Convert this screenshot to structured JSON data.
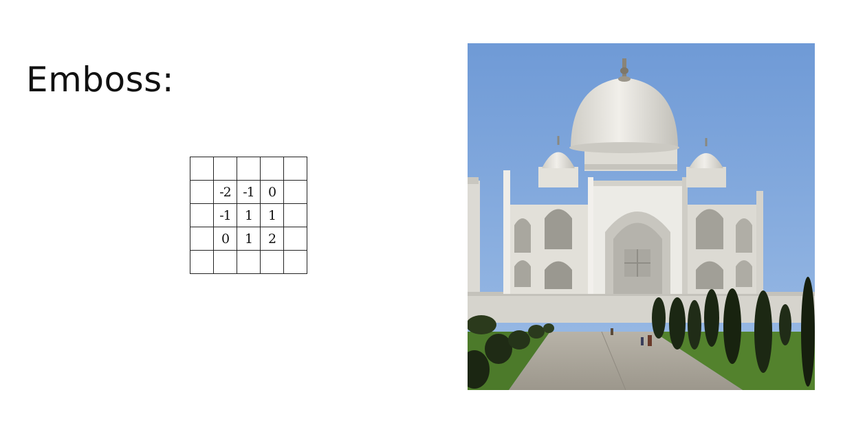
{
  "slide": {
    "title": "Emboss:"
  },
  "kernel": {
    "rows": [
      [
        "",
        "",
        "",
        "",
        ""
      ],
      [
        "",
        "-2",
        "-1",
        "0",
        ""
      ],
      [
        "",
        "-1",
        "1",
        "1",
        ""
      ],
      [
        "",
        "0",
        "1",
        "2",
        ""
      ],
      [
        "",
        "",
        "",
        "",
        ""
      ]
    ]
  },
  "photo": {
    "subject": "taj-mahal-photo",
    "colors": {
      "sky": "#7fa7da",
      "marble": "#e8e6e0",
      "shadow": "#b9b8b2",
      "grass": "#4f7a2a",
      "cypress": "#1e2a16",
      "path": "#a9a49a"
    }
  }
}
